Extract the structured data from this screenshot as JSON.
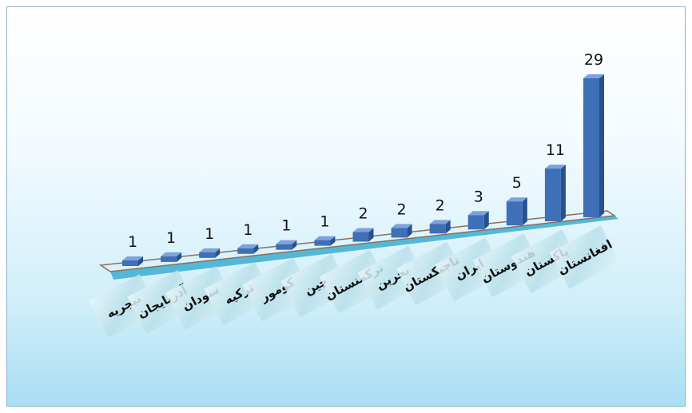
{
  "chart_data": {
    "type": "bar",
    "title": "",
    "xlabel": "",
    "ylabel": "",
    "categories": [
      "نیجریه",
      "آذربایجان",
      "سودان",
      "ترکیه",
      "کومور",
      "چین",
      "ترکمنستان",
      "بحرین",
      "تاجیکستان",
      "ایران",
      "هندوستان",
      "پاکستان",
      "افغانستان"
    ],
    "values": [
      1,
      1,
      1,
      1,
      1,
      1,
      2,
      2,
      2,
      3,
      5,
      11,
      29
    ],
    "grid": false,
    "legend": "none",
    "colors": {
      "bar_front": "#3f6fb6",
      "bar_side": "#27508f",
      "bar_top": "#7ea3db",
      "floor": "#53b8d8"
    }
  }
}
